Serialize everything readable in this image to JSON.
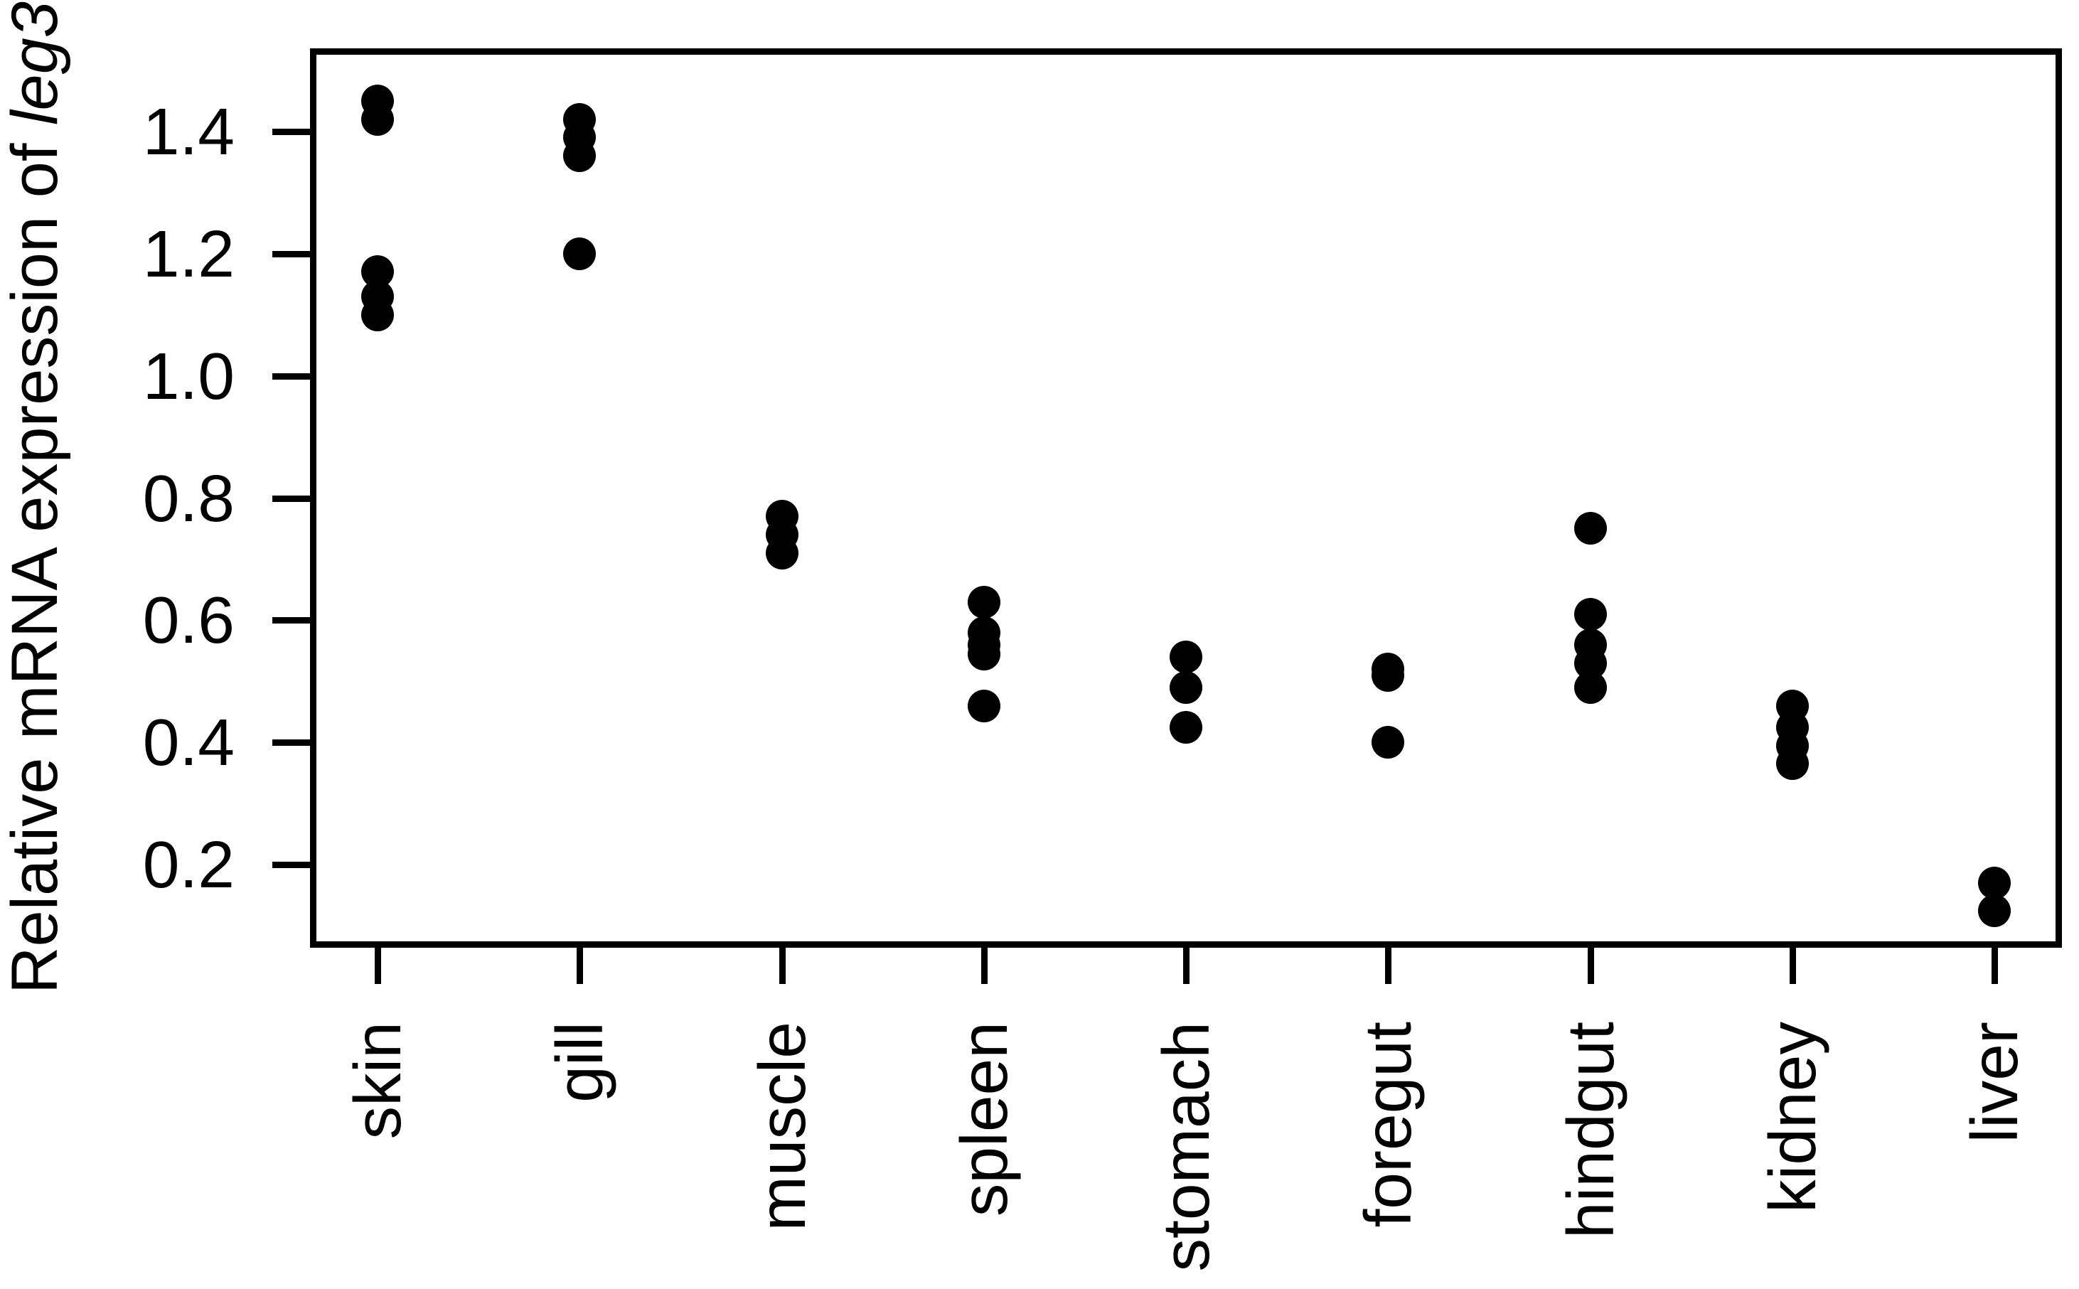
{
  "figure": {
    "background": "#ffffff"
  },
  "chart_data": {
    "type": "scatter",
    "title": "",
    "xlabel": "",
    "ylabel": "Relative mRNA expression of leg3",
    "ylabel_prefix": "Relative mRNA expression of ",
    "ylabel_gene_italic": "leg3",
    "categories": [
      "skin",
      "gill",
      "muscle",
      "spleen",
      "stomach",
      "foregut",
      "hindgut",
      "kidney",
      "liver"
    ],
    "series": [
      {
        "name": "skin",
        "values": [
          1.45,
          1.42,
          1.17,
          1.13,
          1.1
        ]
      },
      {
        "name": "gill",
        "values": [
          1.42,
          1.39,
          1.36,
          1.2
        ]
      },
      {
        "name": "muscle",
        "values": [
          0.77,
          0.74,
          0.71
        ]
      },
      {
        "name": "spleen",
        "values": [
          0.63,
          0.58,
          0.56,
          0.545,
          0.46
        ]
      },
      {
        "name": "stomach",
        "values": [
          0.54,
          0.49,
          0.425
        ]
      },
      {
        "name": "foregut",
        "values": [
          0.52,
          0.51,
          0.4
        ]
      },
      {
        "name": "hindgut",
        "values": [
          0.75,
          0.61,
          0.56,
          0.53,
          0.49
        ]
      },
      {
        "name": "kidney",
        "values": [
          0.46,
          0.425,
          0.395,
          0.365
        ]
      },
      {
        "name": "liver",
        "values": [
          0.17,
          0.125
        ]
      }
    ],
    "yticks": [
      1.4,
      1.2,
      1.0,
      0.8,
      0.6,
      0.4,
      0.2
    ],
    "ytick_labels": [
      "1.4",
      "1.2",
      "1.0",
      "0.8",
      "0.6",
      "0.4",
      "0.2"
    ],
    "ylim": [
      0.07,
      1.53
    ],
    "grid": false,
    "legend": null,
    "point_color": "#000000",
    "axis_color": "#000000"
  }
}
